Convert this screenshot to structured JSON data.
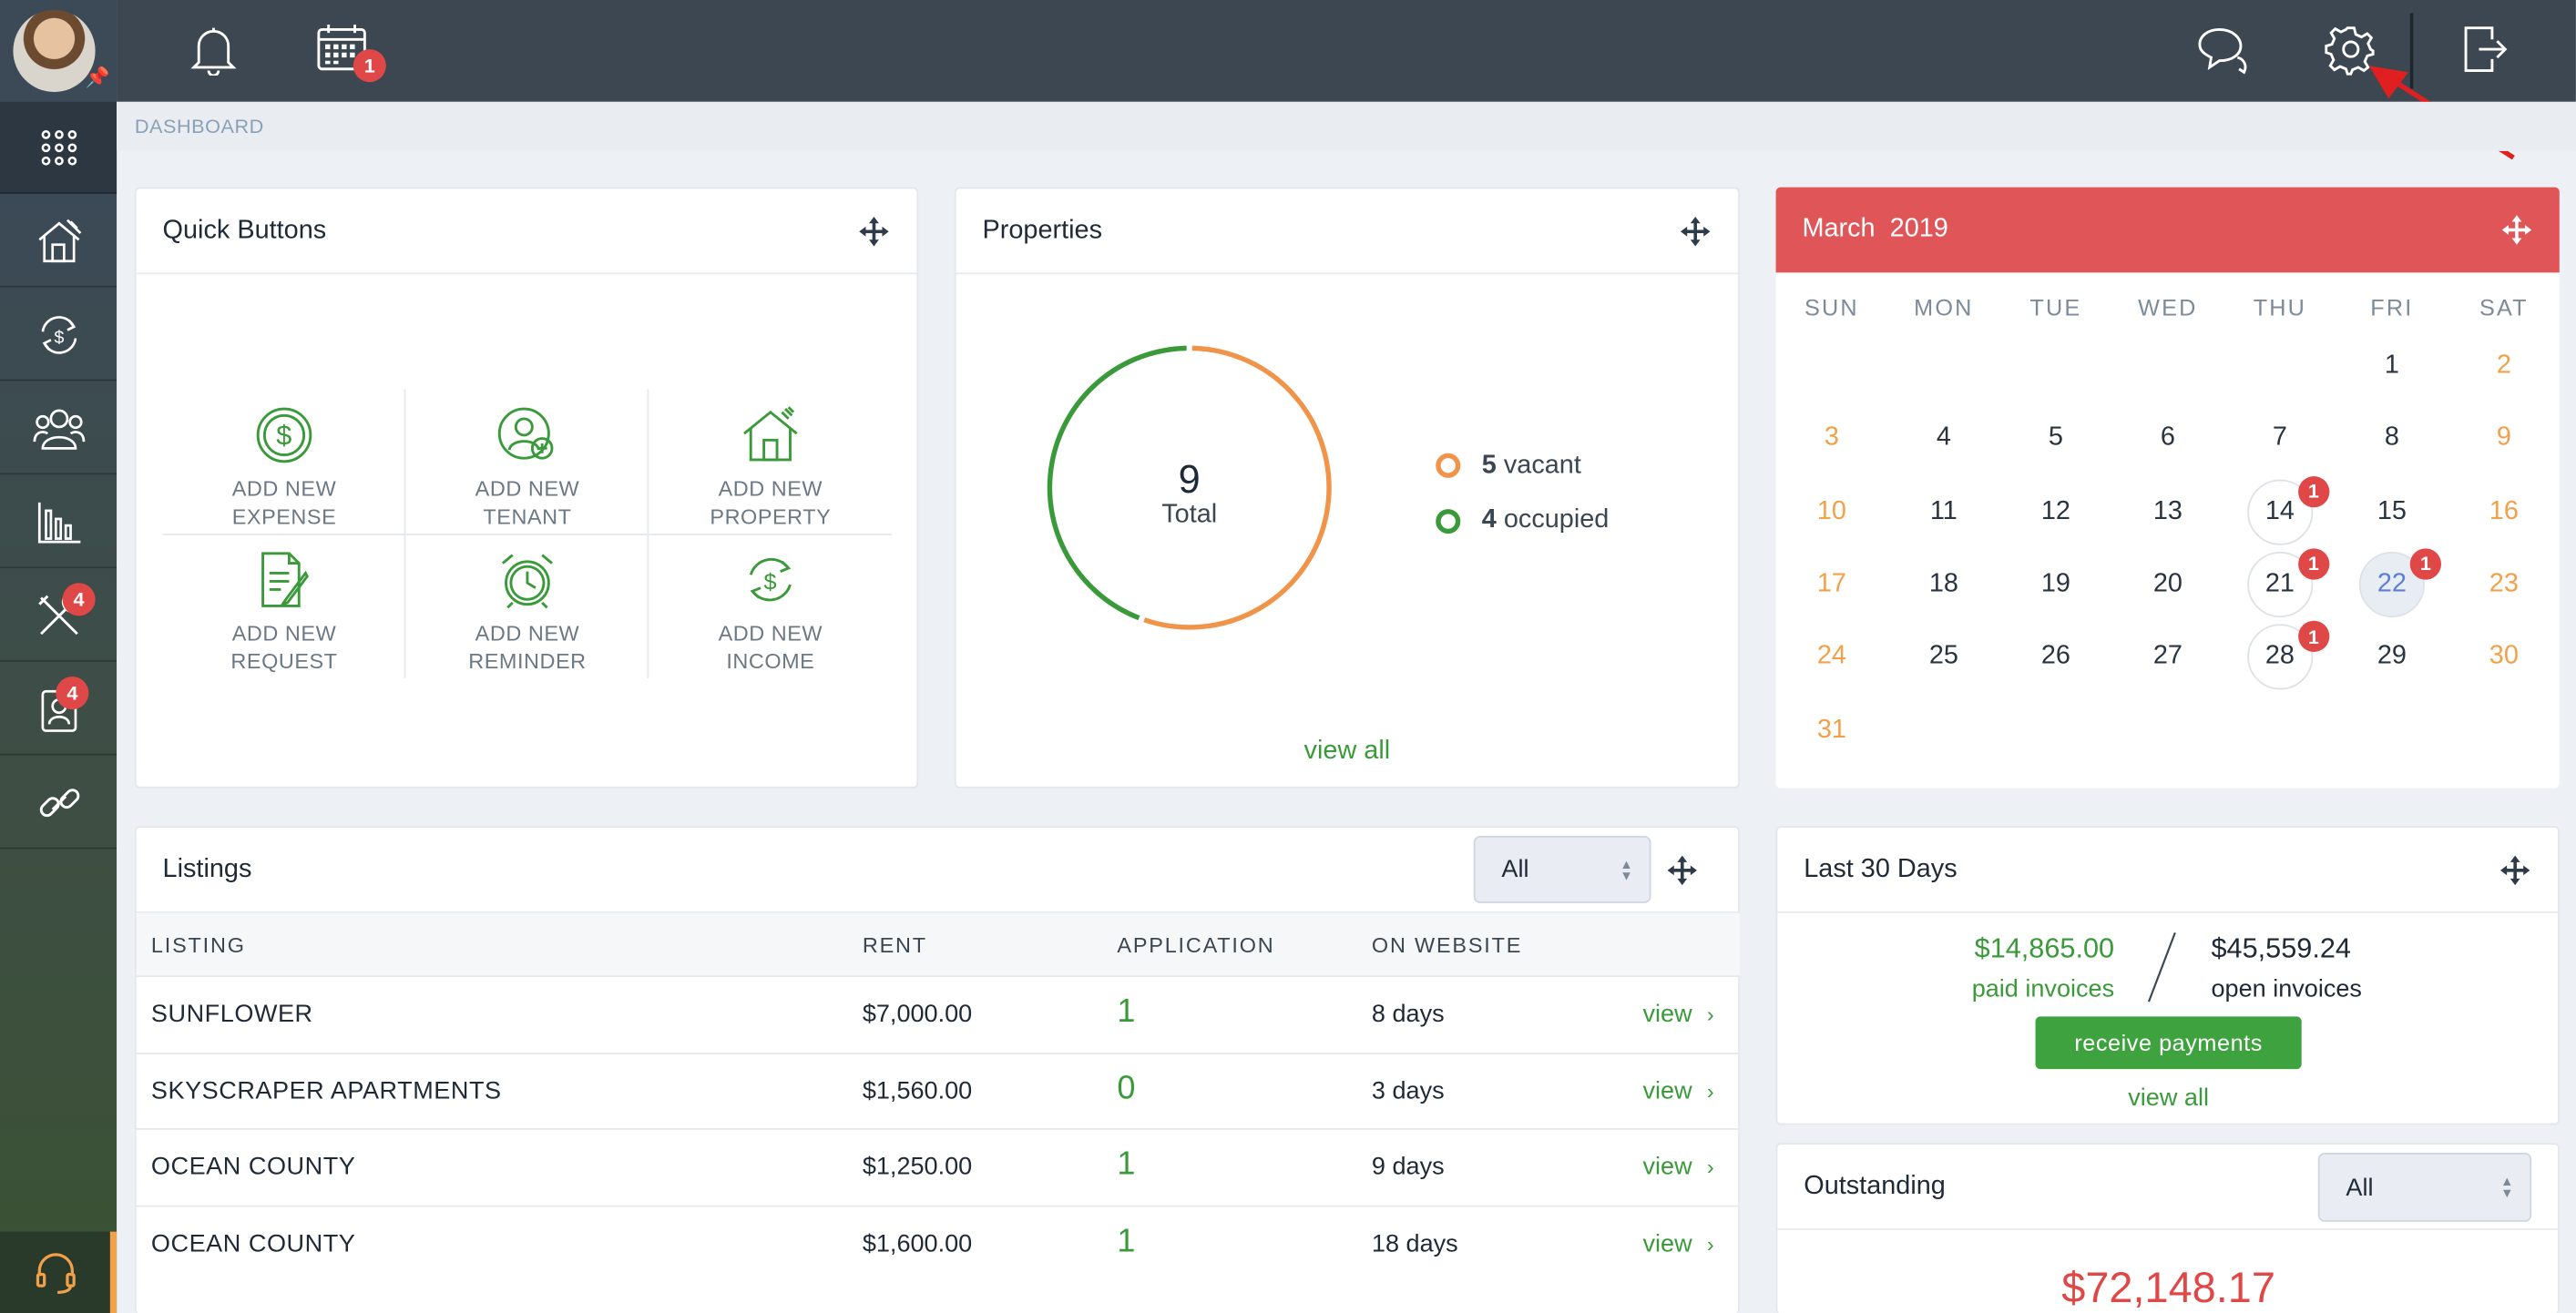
{
  "breadcrumb": "DASHBOARD",
  "topbar": {
    "calendar_badge": "1",
    "icons": [
      "bell-icon",
      "calendar-icon",
      "chat-icon",
      "gear-icon",
      "logout-icon"
    ]
  },
  "sidebar": {
    "items": [
      {
        "name": "apps-grid-icon"
      },
      {
        "name": "properties-icon"
      },
      {
        "name": "accounting-icon"
      },
      {
        "name": "people-icon"
      },
      {
        "name": "reports-icon"
      },
      {
        "name": "maintenance-icon",
        "badge": "4"
      },
      {
        "name": "applicants-icon",
        "badge": "4"
      },
      {
        "name": "links-icon"
      },
      {
        "name": "support-icon"
      }
    ]
  },
  "quick_buttons": {
    "title": "Quick Buttons",
    "buttons": [
      {
        "line1": "ADD NEW",
        "line2": "EXPENSE"
      },
      {
        "line1": "ADD NEW",
        "line2": "TENANT"
      },
      {
        "line1": "ADD NEW",
        "line2": "PROPERTY"
      },
      {
        "line1": "ADD NEW",
        "line2": "REQUEST"
      },
      {
        "line1": "ADD NEW",
        "line2": "REMINDER"
      },
      {
        "line1": "ADD NEW",
        "line2": "INCOME"
      }
    ]
  },
  "properties": {
    "title": "Properties",
    "total": "9",
    "total_label": "Total",
    "vacant_count": "5",
    "vacant_label": "vacant",
    "occupied_count": "4",
    "occupied_label": "occupied",
    "view_all": "view all",
    "vacant_value": 5,
    "occupied_value": 4,
    "colors": {
      "vacant": "#f0944a",
      "occupied": "#3a9a3a"
    }
  },
  "calendar": {
    "month": "March",
    "year": "2019",
    "weekdays": [
      "SUN",
      "MON",
      "TUE",
      "WED",
      "THU",
      "FRI",
      "SAT"
    ],
    "first_weekday": 5,
    "days_in_month": 31,
    "event_badges": {
      "14": "1",
      "21": "1",
      "22": "1",
      "28": "1"
    },
    "selected_day": 22
  },
  "listings": {
    "title": "Listings",
    "filter_value": "All",
    "columns": [
      "LISTING",
      "RENT",
      "APPLICATION",
      "ON WEBSITE"
    ],
    "rows": [
      {
        "listing": "SUNFLOWER",
        "rent": "$7,000.00",
        "application": "1",
        "on_website": "8 days",
        "action": "view"
      },
      {
        "listing": "SKYSCRAPER APARTMENTS",
        "rent": "$1,560.00",
        "application": "0",
        "on_website": "3 days",
        "action": "view"
      },
      {
        "listing": "OCEAN COUNTY",
        "rent": "$1,250.00",
        "application": "1",
        "on_website": "9 days",
        "action": "view"
      },
      {
        "listing": "OCEAN COUNTY",
        "rent": "$1,600.00",
        "application": "1",
        "on_website": "18 days",
        "action": "view"
      }
    ]
  },
  "last30": {
    "title": "Last 30 Days",
    "paid_amount": "$14,865.00",
    "paid_label": "paid invoices",
    "open_amount": "$45,559.24",
    "open_label": "open invoices",
    "button": "receive payments",
    "view_all": "view all"
  },
  "outstanding": {
    "title": "Outstanding",
    "filter_value": "All",
    "amount": "$72,148.17"
  },
  "colors": {
    "accent_green": "#3a9a3a",
    "calendar_red": "#e05557",
    "badge_red": "#e04848",
    "weekend_orange": "#f0a14a"
  }
}
